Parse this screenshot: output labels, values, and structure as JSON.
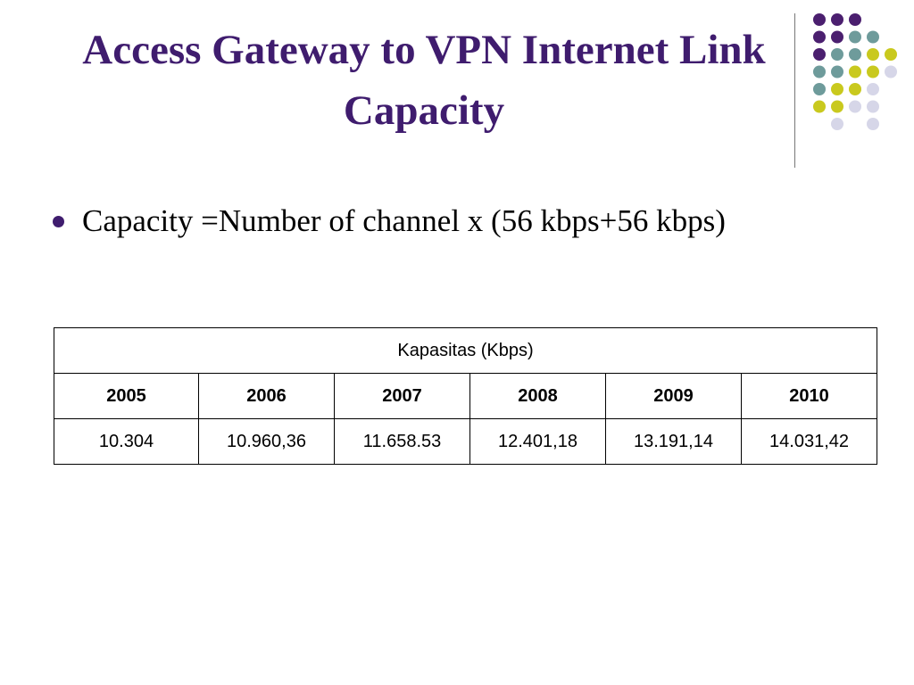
{
  "header": {
    "title": "Access Gateway to VPN Internet Link Capacity"
  },
  "bullets": [
    "Capacity =Number of channel x (56 kbps+56 kbps)"
  ],
  "table": {
    "caption": "Kapasitas (Kbps)",
    "columns": [
      "2005",
      "2006",
      "2007",
      "2008",
      "2009",
      "2010"
    ],
    "rows": [
      [
        "10.304",
        "10.960,36",
        "11.658.53",
        "12.401,18",
        "13.191,14",
        "14.031,42"
      ]
    ]
  }
}
